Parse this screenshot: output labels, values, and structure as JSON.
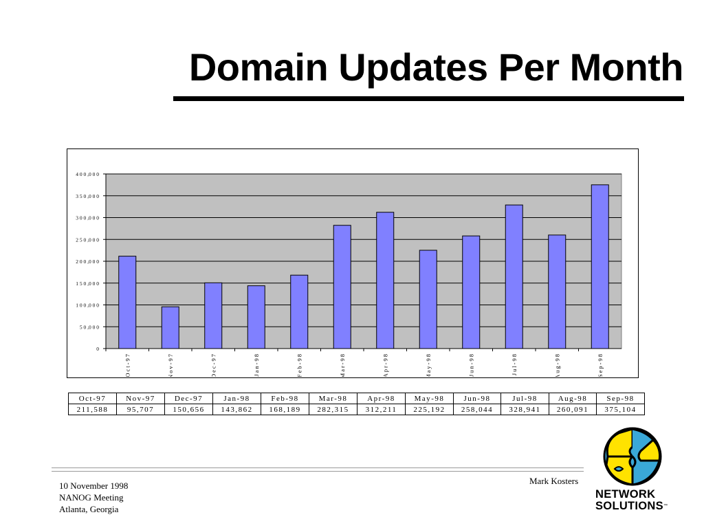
{
  "slide": {
    "title": "Domain Updates Per Month",
    "footer": {
      "date": "10 November 1998",
      "event": "NANOG Meeting",
      "location": "Atlanta, Georgia",
      "author": "Mark Kosters"
    },
    "logo": {
      "line1": "NETWORK",
      "line2": "SOLUTIONS",
      "tm": "™"
    }
  },
  "colors": {
    "bar_fill": "#8080ff",
    "plot_background": "#c0c0c0",
    "gridline": "#000000"
  },
  "chart_data": {
    "type": "bar",
    "categories": [
      "Oct-97",
      "Nov-97",
      "Dec-97",
      "Jan-98",
      "Feb-98",
      "Mar-98",
      "Apr-98",
      "May-98",
      "Jun-98",
      "Jul-98",
      "Aug-98",
      "Sep-98"
    ],
    "values": [
      211588,
      95707,
      150656,
      143862,
      168189,
      282315,
      312211,
      225192,
      258044,
      328941,
      260091,
      375104
    ],
    "ylim": [
      0,
      400000
    ],
    "y_ticks": [
      "0",
      "5 0 ,0 0 0",
      "1 0 0 ,0 0 0",
      "1 5 0 ,0 0 0",
      "2 0 0 ,0 0 0",
      "2 5 0 ,0 0 0",
      "3 0 0 ,0 0 0",
      "3 5 0 ,0 0 0",
      "4 0 0 ,0 0 0"
    ],
    "grid": true,
    "legend": "none"
  },
  "table": {
    "headers": [
      "Oct-97",
      "Nov-97",
      "Dec-97",
      "Jan-98",
      "Feb-98",
      "Mar-98",
      "Apr-98",
      "May-98",
      "Jun-98",
      "Jul-98",
      "Aug-98",
      "Sep-98"
    ],
    "values": [
      "211,588",
      "95,707",
      "150,656",
      "143,862",
      "168,189",
      "282,315",
      "312,211",
      "225,192",
      "258,044",
      "328,941",
      "260,091",
      "375,104"
    ]
  }
}
